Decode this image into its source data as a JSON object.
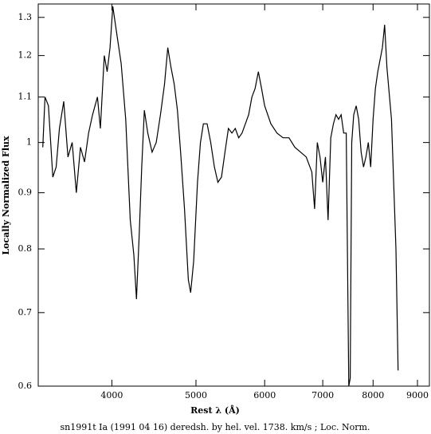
{
  "chart_data": {
    "type": "line",
    "xlabel": "Rest λ (Å)",
    "ylabel": "Locally Normalized Flux",
    "caption": "sn1991t Ia (1991 04 16) deredsh. by hel. vel.  1738. km/s ;  Loc. Norm.",
    "xscale": "log",
    "yscale": "log",
    "xlim": [
      3290,
      9290
    ],
    "ylim": [
      0.6,
      1.337
    ],
    "xticks": [
      4000,
      5000,
      6000,
      7000,
      8000,
      9000
    ],
    "yticks": [
      0.6,
      0.7,
      0.8,
      0.9,
      1,
      1.1,
      1.2,
      1.3
    ],
    "series": [
      {
        "color": "#000000",
        "x": [
          3330,
          3350,
          3380,
          3420,
          3450,
          3480,
          3520,
          3560,
          3600,
          3640,
          3680,
          3720,
          3760,
          3800,
          3850,
          3880,
          3920,
          3950,
          3980,
          4010,
          4050,
          4100,
          4150,
          4200,
          4240,
          4270,
          4300,
          4330,
          4360,
          4400,
          4450,
          4500,
          4550,
          4600,
          4640,
          4680,
          4720,
          4760,
          4800,
          4850,
          4900,
          4930,
          4970,
          5020,
          5060,
          5100,
          5150,
          5200,
          5250,
          5300,
          5350,
          5400,
          5450,
          5500,
          5550,
          5600,
          5650,
          5700,
          5750,
          5800,
          5850,
          5900,
          5950,
          6000,
          6100,
          6200,
          6300,
          6400,
          6500,
          6600,
          6700,
          6800,
          6850,
          6900,
          6950,
          7000,
          7050,
          7100,
          7150,
          7200,
          7250,
          7300,
          7350,
          7400,
          7450,
          7500,
          7530,
          7560,
          7600,
          7650,
          7700,
          7750,
          7800,
          7850,
          7900,
          7950,
          8000,
          8050,
          8100,
          8200,
          8250,
          8300,
          8400,
          8500,
          8550
        ],
        "values": [
          0.99,
          1.1,
          1.08,
          0.93,
          0.95,
          1.03,
          1.09,
          0.97,
          1.0,
          0.9,
          0.99,
          0.96,
          1.02,
          1.06,
          1.1,
          1.03,
          1.2,
          1.16,
          1.22,
          1.33,
          1.26,
          1.18,
          1.05,
          0.85,
          0.79,
          0.72,
          0.82,
          0.95,
          1.07,
          1.02,
          0.98,
          1.0,
          1.06,
          1.13,
          1.22,
          1.17,
          1.13,
          1.07,
          0.98,
          0.87,
          0.75,
          0.73,
          0.78,
          0.92,
          1.0,
          1.04,
          1.04,
          1.0,
          0.95,
          0.92,
          0.93,
          0.98,
          1.03,
          1.02,
          1.03,
          1.01,
          1.02,
          1.04,
          1.06,
          1.1,
          1.12,
          1.16,
          1.12,
          1.08,
          1.04,
          1.02,
          1.01,
          1.01,
          0.99,
          0.98,
          0.97,
          0.94,
          0.87,
          1.0,
          0.97,
          0.92,
          0.97,
          0.85,
          1.01,
          1.04,
          1.06,
          1.05,
          1.06,
          1.02,
          1.02,
          0.6,
          0.61,
          1.0,
          1.06,
          1.08,
          1.05,
          0.98,
          0.95,
          0.97,
          1.0,
          0.95,
          1.05,
          1.12,
          1.16,
          1.22,
          1.28,
          1.17,
          1.05,
          0.8,
          0.62
        ]
      }
    ]
  }
}
